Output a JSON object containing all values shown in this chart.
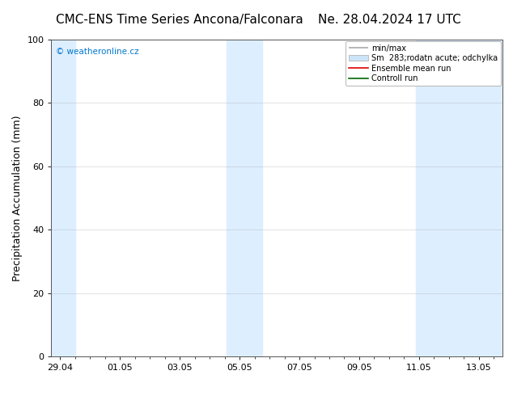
{
  "title": "CMC-ENS Time Series Ancona/Falconara",
  "title2": "Ne. 28.04.2024 17 UTC",
  "ylabel": "Precipitation Accumulation (mm)",
  "ylim": [
    0,
    100
  ],
  "yticks": [
    0,
    20,
    40,
    60,
    80,
    100
  ],
  "bg_color": "#ffffff",
  "plot_bg_color": "#ffffff",
  "watermark": "© weatheronline.cz",
  "watermark_color": "#0077cc",
  "legend_entries": [
    "min/max",
    "Sm  283;rodatn acute; odchylka",
    "Ensemble mean run",
    "Controll run"
  ],
  "x_tick_labels": [
    "29.04",
    "01.05",
    "03.05",
    "05.05",
    "07.05",
    "09.05",
    "11.05",
    "13.05"
  ],
  "x_tick_positions": [
    0,
    2,
    4,
    6,
    8,
    10,
    12,
    14
  ],
  "shaded_band1_x0": -0.3,
  "shaded_band1_x1": 0.5,
  "shaded_band2_x0": 5.55,
  "shaded_band2_x1": 6.75,
  "shaded_band3_x0": 11.9,
  "shaded_band3_x1": 14.8,
  "shade_color": "#ddeeff",
  "grid_color": "#aaaaaa",
  "spine_color": "#555555",
  "title_fontsize": 11,
  "axis_fontsize": 9,
  "tick_fontsize": 8,
  "legend_fontsize": 7,
  "x_min": -0.3,
  "x_max": 14.8
}
